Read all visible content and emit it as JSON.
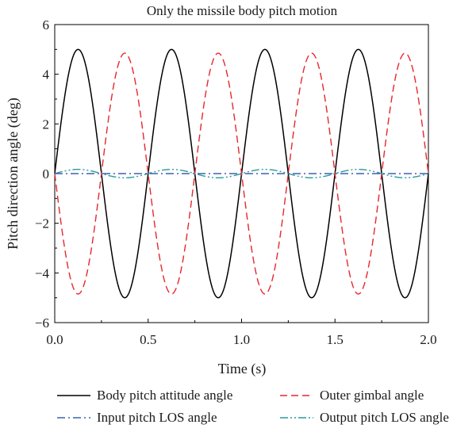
{
  "chart_data": {
    "type": "line",
    "title": "Only the missile body pitch motion",
    "xlabel": "Time (s)",
    "ylabel": "Pitch direction angle (deg)",
    "xlim": [
      0,
      2.0
    ],
    "ylim": [
      -6,
      6
    ],
    "x_ticks": [
      0.0,
      0.5,
      1.0,
      1.5,
      2.0
    ],
    "x_tick_labels": [
      "0.0",
      "0.5",
      "1.0",
      "1.5",
      "2.0"
    ],
    "y_ticks": [
      -6,
      -4,
      -2,
      0,
      2,
      4,
      6
    ],
    "y_tick_labels": [
      "−6",
      "−4",
      "−2",
      "0",
      "2",
      "4",
      "6"
    ],
    "grid": false,
    "legend_position": "bottom",
    "series": [
      {
        "name": "Body pitch attitude angle",
        "color": "#000000",
        "dash": "solid",
        "x": [
          0.0,
          0.0625,
          0.125,
          0.1875,
          0.25,
          0.3125,
          0.375,
          0.4375,
          0.5,
          0.5625,
          0.625,
          0.6875,
          0.75,
          0.8125,
          0.875,
          0.9375,
          1.0,
          1.0625,
          1.125,
          1.1875,
          1.25,
          1.3125,
          1.375,
          1.4375,
          1.5,
          1.5625,
          1.625,
          1.6875,
          1.75,
          1.8125,
          1.875,
          1.9375,
          2.0
        ],
        "values": [
          0,
          3.54,
          5.0,
          3.54,
          0,
          -3.54,
          -5.0,
          -3.54,
          0,
          3.54,
          5.0,
          3.54,
          0,
          -3.54,
          -5.0,
          -3.54,
          0,
          3.54,
          5.0,
          3.54,
          0,
          -3.54,
          -5.0,
          -3.54,
          0,
          3.54,
          5.0,
          3.54,
          0,
          -3.54,
          -5.0,
          -3.54,
          0
        ]
      },
      {
        "name": "Outer gimbal angle",
        "color": "#e8262b",
        "dash": "dashed",
        "x": [
          0.0,
          0.0625,
          0.125,
          0.1875,
          0.25,
          0.3125,
          0.375,
          0.4375,
          0.5,
          0.5625,
          0.625,
          0.6875,
          0.75,
          0.8125,
          0.875,
          0.9375,
          1.0,
          1.0625,
          1.125,
          1.1875,
          1.25,
          1.3125,
          1.375,
          1.4375,
          1.5,
          1.5625,
          1.625,
          1.6875,
          1.75,
          1.8125,
          1.875,
          1.9375,
          2.0
        ],
        "values": [
          0,
          -3.4,
          -4.8,
          -3.4,
          0,
          3.4,
          4.85,
          3.4,
          0,
          -3.4,
          -4.85,
          -3.4,
          0,
          3.4,
          4.85,
          3.4,
          0,
          -3.4,
          -4.85,
          -3.4,
          0,
          3.4,
          4.85,
          3.4,
          0,
          -3.4,
          -4.85,
          -3.4,
          0,
          3.4,
          4.85,
          3.4,
          0
        ]
      },
      {
        "name": "Input pitch LOS angle",
        "color": "#3a62b0",
        "dash": "dashdot",
        "x": [
          0.0,
          2.0
        ],
        "values": [
          0,
          0
        ]
      },
      {
        "name": "Output pitch LOS angle",
        "color": "#2a9a9a",
        "dash": "dashdotdot",
        "x": [
          0.0,
          0.0625,
          0.125,
          0.1875,
          0.25,
          0.3125,
          0.375,
          0.4375,
          0.5,
          0.5625,
          0.625,
          0.6875,
          0.75,
          0.8125,
          0.875,
          0.9375,
          1.0,
          1.0625,
          1.125,
          1.1875,
          1.25,
          1.3125,
          1.375,
          1.4375,
          1.5,
          1.5625,
          1.625,
          1.6875,
          1.75,
          1.8125,
          1.875,
          1.9375,
          2.0
        ],
        "values": [
          0,
          0.12,
          0.17,
          0.12,
          0,
          -0.12,
          -0.17,
          -0.12,
          0,
          0.12,
          0.17,
          0.12,
          0,
          -0.12,
          -0.17,
          -0.12,
          0,
          0.12,
          0.17,
          0.12,
          0,
          -0.12,
          -0.17,
          -0.12,
          0,
          0.12,
          0.17,
          0.12,
          0,
          -0.12,
          -0.17,
          -0.12,
          0
        ]
      }
    ]
  }
}
